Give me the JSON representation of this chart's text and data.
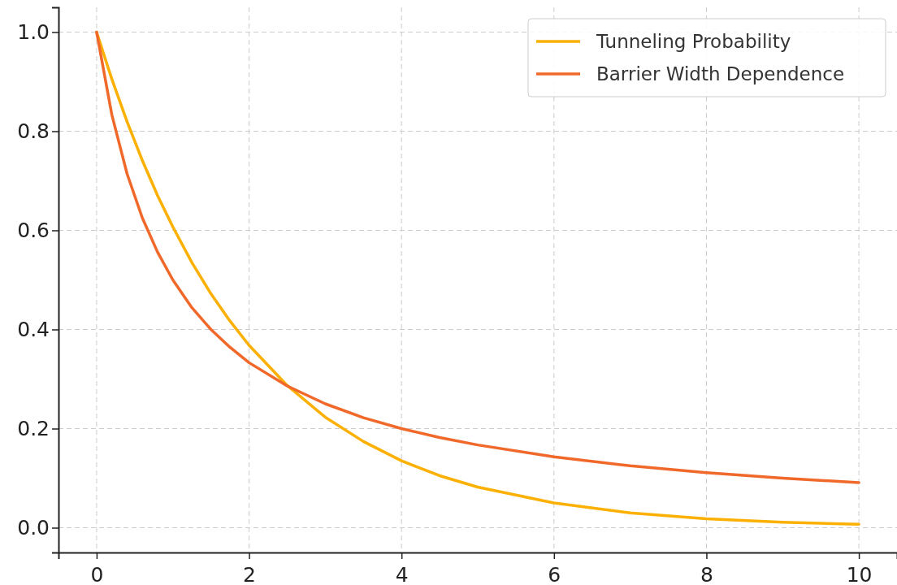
{
  "chart_data": {
    "type": "line",
    "x": [
      0,
      0.2,
      0.4,
      0.6,
      0.8,
      1,
      1.25,
      1.5,
      1.75,
      2,
      2.5,
      3,
      3.5,
      4,
      4.5,
      5,
      6,
      7,
      8,
      9,
      10
    ],
    "series": [
      {
        "name": "Tunneling Probability",
        "color": "#fbb003",
        "values": [
          1,
          0.905,
          0.819,
          0.741,
          0.67,
          0.607,
          0.535,
          0.472,
          0.417,
          0.368,
          0.287,
          0.223,
          0.174,
          0.135,
          0.105,
          0.082,
          0.05,
          0.03,
          0.018,
          0.011,
          0.007
        ]
      },
      {
        "name": "Barrier Width Dependence",
        "color": "#f0692a",
        "values": [
          1,
          0.833,
          0.714,
          0.625,
          0.556,
          0.5,
          0.444,
          0.4,
          0.364,
          0.333,
          0.286,
          0.25,
          0.222,
          0.2,
          0.182,
          0.167,
          0.143,
          0.125,
          0.111,
          0.1,
          0.091
        ]
      }
    ],
    "xlim": [
      -0.5,
      10.5
    ],
    "ylim": [
      -0.05,
      1.05
    ],
    "xticks": [
      0,
      2,
      4,
      6,
      8,
      10
    ],
    "yticks": [
      {
        "value": 0,
        "label": "0.0"
      },
      {
        "value": 0.2,
        "label": "0.2"
      },
      {
        "value": 0.4,
        "label": "0.4"
      },
      {
        "value": 0.6,
        "label": "0.6"
      },
      {
        "value": 0.8,
        "label": "0.8"
      },
      {
        "value": 1,
        "label": "1.0"
      }
    ],
    "grid": true,
    "legend": "top right",
    "line_style": "solid",
    "marker": "none"
  }
}
